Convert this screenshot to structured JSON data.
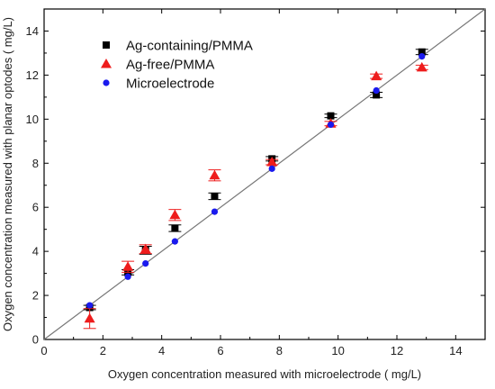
{
  "chart_data": {
    "type": "scatter",
    "title": "",
    "xlabel": "Oxygen concentration measured with microelectrode ( mg/L)",
    "ylabel": "Oxygen concentration measured with planar optodes ( mg/L)",
    "xlim": [
      0,
      15
    ],
    "ylim": [
      0,
      15
    ],
    "xticks": [
      0,
      2,
      4,
      6,
      8,
      10,
      12,
      14
    ],
    "yticks": [
      0,
      2,
      4,
      6,
      8,
      10,
      12,
      14
    ],
    "grid": false,
    "legend_position": "top-left",
    "reference_line": {
      "from": [
        0,
        0
      ],
      "to": [
        15,
        15
      ],
      "color": "#777777"
    },
    "series": [
      {
        "name": "Ag-containing/PMMA",
        "marker": "square",
        "color": "#000000",
        "points": [
          {
            "x": 1.55,
            "y": 1.45,
            "err": 0.1
          },
          {
            "x": 2.85,
            "y": 3.05,
            "err": 0.12
          },
          {
            "x": 3.45,
            "y": 4.05,
            "err": 0.18
          },
          {
            "x": 4.45,
            "y": 5.05,
            "err": 0.15
          },
          {
            "x": 5.8,
            "y": 6.5,
            "err": 0.15
          },
          {
            "x": 7.75,
            "y": 8.2,
            "err": 0.1
          },
          {
            "x": 9.75,
            "y": 10.15,
            "err": 0.08
          },
          {
            "x": 11.3,
            "y": 11.1,
            "err": 0.12
          },
          {
            "x": 12.85,
            "y": 13.05,
            "err": 0.12
          }
        ]
      },
      {
        "name": "Ag-free/PMMA",
        "marker": "triangle",
        "color": "#ee1c1c",
        "points": [
          {
            "x": 1.55,
            "y": 0.95,
            "err": 0.45
          },
          {
            "x": 2.85,
            "y": 3.3,
            "err": 0.25
          },
          {
            "x": 3.45,
            "y": 4.1,
            "err": 0.2
          },
          {
            "x": 4.45,
            "y": 5.65,
            "err": 0.25
          },
          {
            "x": 5.8,
            "y": 7.45,
            "err": 0.25
          },
          {
            "x": 7.75,
            "y": 8.05,
            "err": 0.12
          },
          {
            "x": 9.75,
            "y": 9.8,
            "err": 0.1
          },
          {
            "x": 11.3,
            "y": 11.95,
            "err": 0.1
          },
          {
            "x": 12.85,
            "y": 12.35,
            "err": 0.1
          }
        ]
      },
      {
        "name": "Microelectrode",
        "marker": "circle",
        "color": "#1a1aee",
        "points": [
          {
            "x": 1.55,
            "y": 1.55
          },
          {
            "x": 2.85,
            "y": 2.85
          },
          {
            "x": 3.45,
            "y": 3.45
          },
          {
            "x": 4.45,
            "y": 4.45
          },
          {
            "x": 5.8,
            "y": 5.8
          },
          {
            "x": 7.75,
            "y": 7.75
          },
          {
            "x": 9.75,
            "y": 9.75
          },
          {
            "x": 11.3,
            "y": 11.3
          },
          {
            "x": 12.85,
            "y": 12.85
          }
        ]
      }
    ]
  }
}
